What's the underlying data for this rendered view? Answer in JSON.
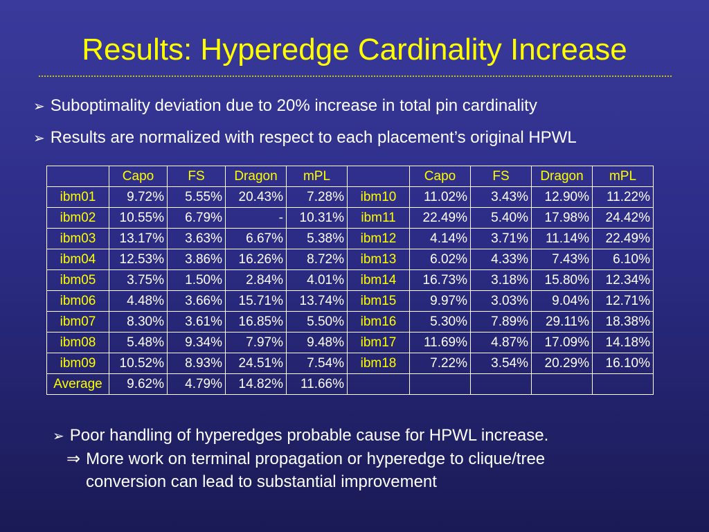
{
  "title": "Results: Hyperedge Cardinality Increase",
  "bullets": [
    "Suboptimality deviation due to 20% increase in total pin cardinality",
    "Results are normalized with respect to each placement’s original HPWL"
  ],
  "conclusion": {
    "main": "Poor handling of hyperedges probable cause for HPWL increase.",
    "implies_symbol": "⇒",
    "sub_line1": "More work on terminal propagation or hyperedge to clique/tree",
    "sub_line2": "conversion can lead to substantial improvement"
  },
  "table": {
    "headers": [
      "",
      "Capo",
      "FS",
      "Dragon",
      "mPL",
      "",
      "Capo",
      "FS",
      "Dragon",
      "mPL"
    ],
    "rows": [
      [
        "ibm01",
        "9.72%",
        "5.55%",
        "20.43%",
        "7.28%",
        "ibm10",
        "11.02%",
        "3.43%",
        "12.90%",
        "11.22%"
      ],
      [
        "ibm02",
        "10.55%",
        "6.79%",
        "-",
        "10.31%",
        "ibm11",
        "22.49%",
        "5.40%",
        "17.98%",
        "24.42%"
      ],
      [
        "ibm03",
        "13.17%",
        "3.63%",
        "6.67%",
        "5.38%",
        "ibm12",
        "4.14%",
        "3.71%",
        "11.14%",
        "22.49%"
      ],
      [
        "ibm04",
        "12.53%",
        "3.86%",
        "16.26%",
        "8.72%",
        "ibm13",
        "6.02%",
        "4.33%",
        "7.43%",
        "6.10%"
      ],
      [
        "ibm05",
        "3.75%",
        "1.50%",
        "2.84%",
        "4.01%",
        "ibm14",
        "16.73%",
        "3.18%",
        "15.80%",
        "12.34%"
      ],
      [
        "ibm06",
        "4.48%",
        "3.66%",
        "15.71%",
        "13.74%",
        "ibm15",
        "9.97%",
        "3.03%",
        "9.04%",
        "12.71%"
      ],
      [
        "ibm07",
        "8.30%",
        "3.61%",
        "16.85%",
        "5.50%",
        "ibm16",
        "5.30%",
        "7.89%",
        "29.11%",
        "18.38%"
      ],
      [
        "ibm08",
        "5.48%",
        "9.34%",
        "7.97%",
        "9.48%",
        "ibm17",
        "11.69%",
        "4.87%",
        "17.09%",
        "14.18%"
      ],
      [
        "ibm09",
        "10.52%",
        "8.93%",
        "24.51%",
        "7.54%",
        "ibm18",
        "7.22%",
        "3.54%",
        "20.29%",
        "16.10%"
      ],
      [
        "Average",
        "9.62%",
        "4.79%",
        "14.82%",
        "11.66%",
        "",
        "",
        "",
        "",
        ""
      ]
    ]
  },
  "colors": {
    "title": "#ffff00",
    "body_text": "#ffffff",
    "row_label": "#ffff00",
    "background_top": "#3a3a9c",
    "background_bottom": "#1a1a55"
  }
}
